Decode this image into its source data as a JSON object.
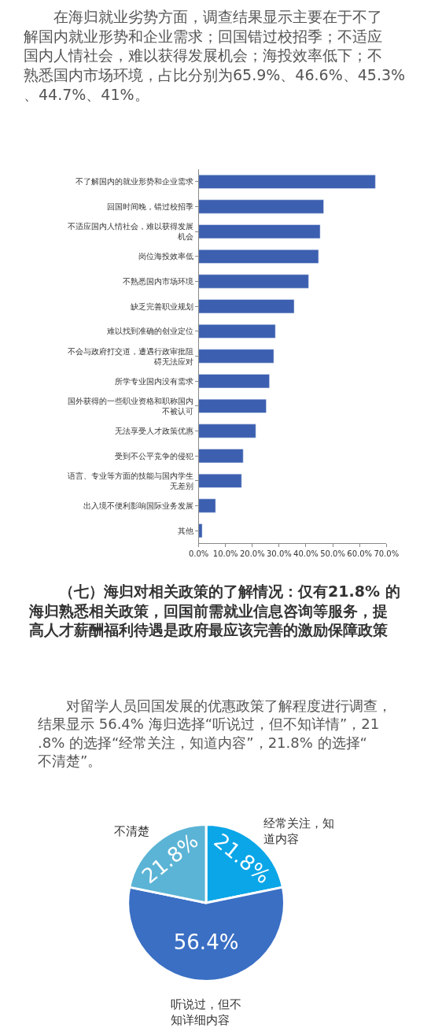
{
  "chart_data": [
    {
      "type": "bar",
      "orientation": "horizontal",
      "title": "在海归就业劣势方面，调查结果显示主要在于不了解国内就业形势和企业需求；回国错过校招季；不适应国内人情社会，难以获得发展机会；海投效率低下；不熟悉国内市场环境，占比分别为65.9%、46.6%、45.3%、44.7%、41%。",
      "categories": [
        "不了解国内的就业形势和企业需求",
        "回国时间晚，错过校招季",
        "不适应国内人情社会，难以获得发展机会",
        "岗位海投效率低",
        "不熟悉国内市场环境",
        "缺乏完善职业规划",
        "难以找到准确的创业定位",
        "不会与政府打交道，遭遇行政审批阻碍无法应对",
        "所学专业国内没有需求",
        "国外获得的一些职业资格和职称国内不被认可",
        "无法享受人才政策优惠",
        "受到不公平竞争的侵犯",
        "语言、专业等方面的技能与国内学生无差别",
        "出入境不便利影响国际业务发展",
        "其他"
      ],
      "values": [
        65.9,
        46.6,
        45.3,
        44.7,
        41.0,
        35.6,
        28.6,
        28.0,
        26.4,
        25.2,
        21.3,
        16.6,
        16.0,
        6.3,
        1.3
      ],
      "color": "#3c5fb0",
      "xlim": [
        0,
        70
      ],
      "xticks": [
        {
          "value": 0,
          "label": "0.0%"
        },
        {
          "value": 10,
          "label": "10.0%"
        },
        {
          "value": 20,
          "label": "20.0%"
        },
        {
          "value": 30,
          "label": "30.0%"
        },
        {
          "value": 40,
          "label": "40.0%"
        },
        {
          "value": 50,
          "label": "50.0%"
        },
        {
          "value": 60,
          "label": "60.0%"
        },
        {
          "value": 70,
          "label": "70.0%"
        }
      ]
    },
    {
      "type": "pie",
      "title": "（七）海归对相关政策的了解情况：仅有21.8% 的海归熟悉相关政策，回国前需就业信息咨询等服务，提高人才薪酬福利待遇是政府最应该完善的激励保障政策",
      "subtitle": "对留学人员回国发展的优惠政策了解程度进行调查，结果显示 56.4% 海归选择“听说过，但不知详情”，21.8% 的选择“经常关注，知道内容”，21.8% 的选择“不清楚”。",
      "categories": [
        "经常关注，知道内容",
        "听说过，但不知详细内容",
        "不清楚"
      ],
      "values": [
        21.8,
        56.4,
        21.8
      ],
      "colors": [
        "#0aa6e8",
        "#3a6fc4",
        "#5bb4d5"
      ],
      "value_labels": [
        "21.8%",
        "56.4%",
        "21.8%"
      ]
    }
  ]
}
